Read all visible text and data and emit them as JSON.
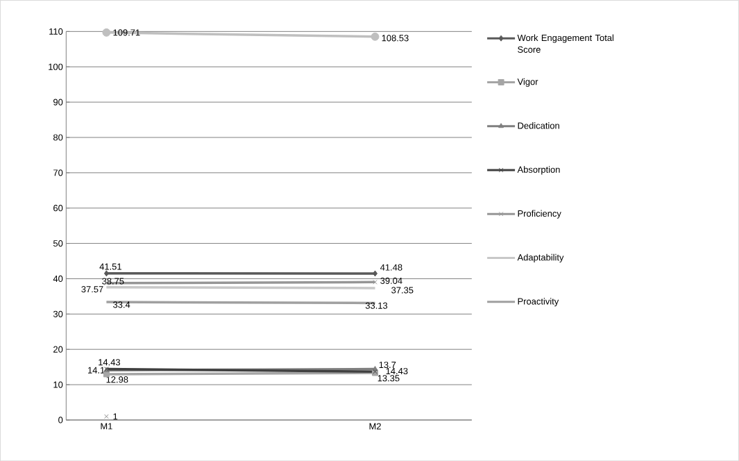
{
  "chart_data": {
    "type": "line",
    "categories": [
      "M1",
      "M2"
    ],
    "series": [
      {
        "name": "Work Engagement Total Score",
        "color": "#595959",
        "marker": "diamond",
        "values": [
          41.51,
          41.48
        ]
      },
      {
        "name": "Vigor",
        "color": "#a5a5a5",
        "marker": "square",
        "values": [
          12.98,
          13.35
        ]
      },
      {
        "name": "Dedication",
        "color": "#7f7f7f",
        "marker": "triangle",
        "values": [
          14.1,
          14.43
        ]
      },
      {
        "name": "Absorption",
        "color": "#404040",
        "marker": "cross",
        "values": [
          14.43,
          13.7
        ]
      },
      {
        "name": "Proficiency",
        "color": "#969696",
        "marker": "cross",
        "values": [
          38.75,
          39.04
        ]
      },
      {
        "name": "Adaptability",
        "color": "#c8c8c8",
        "marker": "none",
        "values": [
          37.57,
          37.35
        ]
      },
      {
        "name": "Proactivity",
        "color": "#a0a0a0",
        "marker": "none",
        "values": [
          33.4,
          33.13
        ]
      },
      {
        "color": "#bfbfbf",
        "marker": "circle",
        "values": [
          109.71,
          108.53
        ]
      },
      {
        "color": "#8c8c8c",
        "marker": "cross",
        "values": [
          1,
          null
        ]
      }
    ],
    "ylim": [
      0,
      110
    ],
    "yticks": [
      0,
      10,
      20,
      30,
      40,
      50,
      60,
      70,
      80,
      90,
      100,
      110
    ],
    "grid": "y",
    "legend": "right",
    "data_labels": true
  }
}
